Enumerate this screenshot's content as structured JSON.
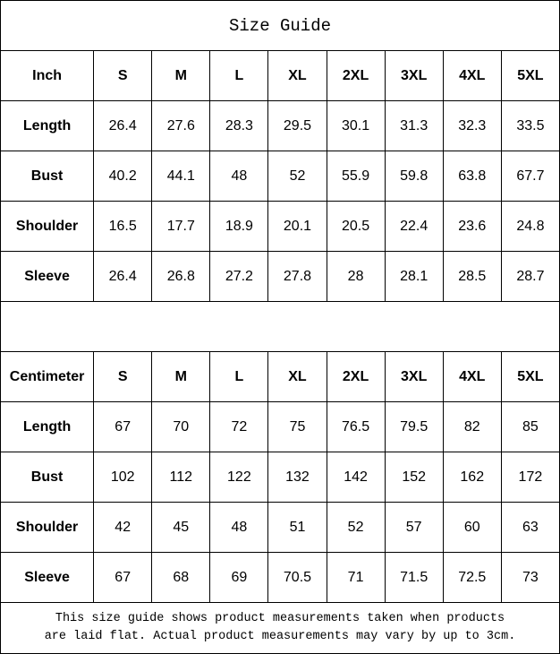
{
  "title": "Size Guide",
  "sizes": [
    "S",
    "M",
    "L",
    "XL",
    "2XL",
    "3XL",
    "4XL",
    "5XL"
  ],
  "tables": [
    {
      "unit": "Inch",
      "rows": [
        {
          "label": "Length",
          "values": [
            "26.4",
            "27.6",
            "28.3",
            "29.5",
            "30.1",
            "31.3",
            "32.3",
            "33.5"
          ]
        },
        {
          "label": "Bust",
          "values": [
            "40.2",
            "44.1",
            "48",
            "52",
            "55.9",
            "59.8",
            "63.8",
            "67.7"
          ]
        },
        {
          "label": "Shoulder",
          "values": [
            "16.5",
            "17.7",
            "18.9",
            "20.1",
            "20.5",
            "22.4",
            "23.6",
            "24.8"
          ]
        },
        {
          "label": "Sleeve",
          "values": [
            "26.4",
            "26.8",
            "27.2",
            "27.8",
            "28",
            "28.1",
            "28.5",
            "28.7"
          ]
        }
      ]
    },
    {
      "unit": "Centimeter",
      "rows": [
        {
          "label": "Length",
          "values": [
            "67",
            "70",
            "72",
            "75",
            "76.5",
            "79.5",
            "82",
            "85"
          ]
        },
        {
          "label": "Bust",
          "values": [
            "102",
            "112",
            "122",
            "132",
            "142",
            "152",
            "162",
            "172"
          ]
        },
        {
          "label": "Shoulder",
          "values": [
            "42",
            "45",
            "48",
            "51",
            "52",
            "57",
            "60",
            "63"
          ]
        },
        {
          "label": "Sleeve",
          "values": [
            "67",
            "68",
            "69",
            "70.5",
            "71",
            "71.5",
            "72.5",
            "73"
          ]
        }
      ]
    }
  ],
  "footer": {
    "line1": "This size guide shows product measurements taken when products",
    "line2": "are laid flat. Actual product measurements may vary by up to 3cm."
  }
}
